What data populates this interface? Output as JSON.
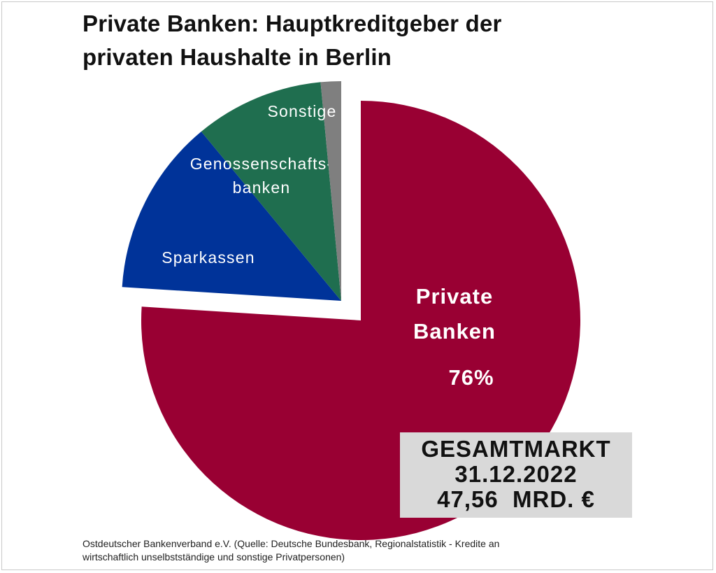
{
  "title_lines": [
    "Private Banken: Hauptkreditgeber der",
    "privaten Haushalte in Berlin"
  ],
  "chart_data": {
    "type": "pie",
    "title": "Private Banken: Hauptkreditgeber der privaten Haushalte in Berlin",
    "slices": [
      {
        "label_lines": [
          "Private",
          "Banken"
        ],
        "value": 76,
        "value_label": "76%",
        "color": "#990033",
        "exploded": false
      },
      {
        "label_lines": [
          "Sparkassen"
        ],
        "value": 13,
        "color": "#003399",
        "exploded": true
      },
      {
        "label_lines": [
          "Genossenschafts-",
          "banken"
        ],
        "value": 9.5,
        "color": "#1f6e4f",
        "exploded": true
      },
      {
        "label_lines": [
          "Sonstige"
        ],
        "value": 1.5,
        "color": "#7f7f7f",
        "exploded": true
      }
    ]
  },
  "total_box": {
    "lines": [
      "GESAMTMARKT",
      "31.12.2022",
      "47,56  MRD. €"
    ]
  },
  "footer_lines": [
    "Ostdeutscher Bankenverband e.V.  (Quelle: Deutsche Bundesbank, Regionalstatistik - Kredite an",
    "wirtschaftlich unselbstständige und sonstige Privatpersonen)"
  ]
}
